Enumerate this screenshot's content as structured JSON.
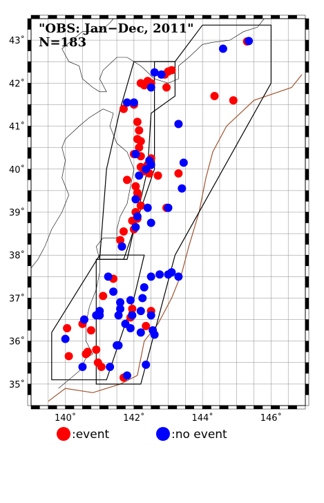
{
  "title": {
    "line1": "\"OBS: Jan−Dec, 2011\"",
    "line2": "N=183"
  },
  "axes": {
    "lon_range": [
      139,
      147
    ],
    "lat_range": [
      34.5,
      43.5
    ],
    "x_ticks": [
      {
        "value": 140,
        "label": "140˚"
      },
      {
        "value": 142,
        "label": "142˚"
      },
      {
        "value": 144,
        "label": "144˚"
      },
      {
        "value": 146,
        "label": "146˚"
      }
    ],
    "y_ticks": [
      {
        "value": 35,
        "label": "35˚"
      },
      {
        "value": 36,
        "label": "36˚"
      },
      {
        "value": 37,
        "label": "37˚"
      },
      {
        "value": 38,
        "label": "38˚"
      },
      {
        "value": 39,
        "label": "39˚"
      },
      {
        "value": 40,
        "label": "40˚"
      },
      {
        "value": 41,
        "label": "41˚"
      },
      {
        "value": 42,
        "label": "42˚"
      },
      {
        "value": 43,
        "label": "43˚"
      }
    ],
    "grid": true,
    "grid_step_deg": 0.5
  },
  "legend": {
    "event": {
      "label": ":event",
      "color": "#ff0000"
    },
    "no_event": {
      "label": ":no event",
      "color": "#0000ff"
    }
  },
  "colors": {
    "event": "#ff0000",
    "no_event": "#0000ff",
    "coastline": "#000000",
    "trench": "#a0522d",
    "grid": "#888888"
  },
  "regions": [
    [
      [
        144.0,
        43.35
      ],
      [
        146.0,
        43.35
      ],
      [
        146.0,
        42.0
      ],
      [
        145.3,
        41.0
      ],
      [
        143.2,
        38.0
      ],
      [
        142.2,
        35.0
      ],
      [
        140.9,
        35.0
      ],
      [
        140.9,
        37.9
      ],
      [
        141.7,
        37.9
      ],
      [
        142.6,
        40.0
      ],
      [
        142.6,
        42.5
      ],
      [
        143.2,
        42.5
      ],
      [
        144.0,
        43.35
      ]
    ],
    [
      [
        142.0,
        42.5
      ],
      [
        143.2,
        42.5
      ],
      [
        143.2,
        41.7
      ],
      [
        142.5,
        41.3
      ],
      [
        142.4,
        40.0
      ],
      [
        141.8,
        37.9
      ],
      [
        141.0,
        37.9
      ],
      [
        141.2,
        40.0
      ],
      [
        141.6,
        41.4
      ],
      [
        142.0,
        42.5
      ]
    ],
    [
      [
        139.6,
        36.2
      ],
      [
        141.0,
        38.0
      ],
      [
        142.3,
        38.0
      ],
      [
        142.0,
        37.0
      ],
      [
        141.2,
        35.1
      ],
      [
        139.6,
        35.1
      ],
      [
        139.6,
        36.2
      ]
    ]
  ],
  "coastline": [
    [
      [
        139.8,
        34.9
      ],
      [
        140.1,
        35.1
      ],
      [
        140.4,
        35.3
      ],
      [
        140.6,
        35.6
      ],
      [
        140.8,
        35.7
      ],
      [
        140.6,
        36.0
      ],
      [
        140.6,
        36.4
      ],
      [
        140.7,
        36.8
      ],
      [
        140.9,
        37.2
      ],
      [
        141.0,
        37.6
      ],
      [
        141.0,
        37.9
      ],
      [
        140.9,
        38.2
      ],
      [
        141.1,
        38.4
      ],
      [
        141.5,
        38.4
      ],
      [
        141.5,
        38.6
      ],
      [
        141.6,
        38.9
      ],
      [
        141.8,
        39.2
      ],
      [
        141.9,
        39.6
      ],
      [
        142.0,
        40.0
      ],
      [
        141.8,
        40.4
      ],
      [
        141.5,
        40.6
      ],
      [
        141.3,
        41.0
      ],
      [
        141.4,
        41.3
      ],
      [
        141.1,
        41.4
      ],
      [
        140.7,
        41.2
      ],
      [
        140.4,
        41.0
      ],
      [
        140.0,
        40.7
      ],
      [
        139.9,
        40.5
      ],
      [
        140.0,
        40.2
      ],
      [
        139.9,
        39.8
      ],
      [
        140.1,
        39.4
      ],
      [
        139.9,
        39.0
      ],
      [
        139.6,
        38.6
      ],
      [
        139.4,
        38.2
      ],
      [
        139.2,
        37.9
      ],
      [
        139.0,
        37.7
      ]
    ],
    [
      [
        140.1,
        42.5
      ],
      [
        140.4,
        42.4
      ],
      [
        140.5,
        42.1
      ],
      [
        140.8,
        41.9
      ],
      [
        141.0,
        41.8
      ],
      [
        141.2,
        41.8
      ],
      [
        141.0,
        42.1
      ],
      [
        141.1,
        42.3
      ],
      [
        141.5,
        42.6
      ],
      [
        141.8,
        42.6
      ],
      [
        142.2,
        42.4
      ],
      [
        142.6,
        42.1
      ],
      [
        143.0,
        42.0
      ],
      [
        143.3,
        42.1
      ],
      [
        143.3,
        42.4
      ],
      [
        143.6,
        42.6
      ],
      [
        144.0,
        42.9
      ],
      [
        144.3,
        42.95
      ],
      [
        144.8,
        43.0
      ],
      [
        145.2,
        43.2
      ],
      [
        145.6,
        43.3
      ],
      [
        145.8,
        43.5
      ]
    ],
    [
      [
        140.1,
        42.5
      ],
      [
        139.9,
        42.8
      ],
      [
        140.2,
        43.0
      ],
      [
        140.5,
        43.2
      ],
      [
        141.0,
        43.2
      ],
      [
        141.3,
        43.4
      ],
      [
        141.4,
        43.5
      ]
    ]
  ],
  "trench": [
    [
      146.9,
      42.2
    ],
    [
      146.6,
      41.9
    ],
    [
      145.5,
      41.6
    ],
    [
      144.7,
      41.0
    ],
    [
      144.3,
      40.4
    ],
    [
      144.1,
      39.8
    ],
    [
      143.9,
      39.0
    ],
    [
      143.6,
      38.2
    ],
    [
      143.4,
      37.6
    ],
    [
      143.1,
      37.0
    ],
    [
      142.7,
      36.4
    ],
    [
      142.3,
      36.0
    ],
    [
      142.2,
      35.6
    ],
    [
      142.1,
      35.2
    ],
    [
      141.6,
      35.0
    ],
    [
      140.8,
      34.8
    ],
    [
      140.0,
      34.9
    ],
    [
      139.5,
      34.6
    ]
  ],
  "markers": {
    "event": [
      [
        145.3,
        42.97
      ],
      [
        144.9,
        41.6
      ],
      [
        144.35,
        41.7
      ],
      [
        142.9,
        42.2
      ],
      [
        143.0,
        42.27
      ],
      [
        143.1,
        42.3
      ],
      [
        142.5,
        42.0
      ],
      [
        142.4,
        42.05
      ],
      [
        142.3,
        41.95
      ],
      [
        142.2,
        42.0
      ],
      [
        142.0,
        41.5
      ],
      [
        141.7,
        41.4
      ],
      [
        142.1,
        41.1
      ],
      [
        142.15,
        40.9
      ],
      [
        142.1,
        40.7
      ],
      [
        142.2,
        40.65
      ],
      [
        142.15,
        40.5
      ],
      [
        142.0,
        40.35
      ],
      [
        142.2,
        40.3
      ],
      [
        142.5,
        40.25
      ],
      [
        142.4,
        40.1
      ],
      [
        142.2,
        40.05
      ],
      [
        142.3,
        39.95
      ],
      [
        142.45,
        39.9
      ],
      [
        142.7,
        39.85
      ],
      [
        143.3,
        39.9
      ],
      [
        141.8,
        39.75
      ],
      [
        142.05,
        39.6
      ],
      [
        142.1,
        39.45
      ],
      [
        142.1,
        39.35
      ],
      [
        142.2,
        39.15
      ],
      [
        142.05,
        39.0
      ],
      [
        142.1,
        38.85
      ],
      [
        141.95,
        38.8
      ],
      [
        142.0,
        38.6
      ],
      [
        141.7,
        38.55
      ],
      [
        141.6,
        38.35
      ],
      [
        141.65,
        38.2
      ],
      [
        142.95,
        39.1
      ],
      [
        143.3,
        41.05
      ],
      [
        142.95,
        41.9
      ],
      [
        141.4,
        37.45
      ],
      [
        141.1,
        37.05
      ],
      [
        141.95,
        36.75
      ],
      [
        142.5,
        36.7
      ],
      [
        142.35,
        36.35
      ],
      [
        141.9,
        36.55
      ],
      [
        140.05,
        36.3
      ],
      [
        140.55,
        36.5
      ],
      [
        140.5,
        36.4
      ],
      [
        140.75,
        36.25
      ],
      [
        140.9,
        35.8
      ],
      [
        140.6,
        35.7
      ],
      [
        140.65,
        35.75
      ],
      [
        140.1,
        35.65
      ],
      [
        140.95,
        35.5
      ],
      [
        141.05,
        35.4
      ],
      [
        141.7,
        35.15
      ]
    ],
    "no_event": [
      [
        145.35,
        42.98
      ],
      [
        144.6,
        42.8
      ],
      [
        142.6,
        42.25
      ],
      [
        142.8,
        42.2
      ],
      [
        142.5,
        41.9
      ],
      [
        141.8,
        41.55
      ],
      [
        142.0,
        41.55
      ],
      [
        143.3,
        41.05
      ],
      [
        142.05,
        40.35
      ],
      [
        142.45,
        40.2
      ],
      [
        142.5,
        40.1
      ],
      [
        142.35,
        40.0
      ],
      [
        142.15,
        39.85
      ],
      [
        143.45,
        40.15
      ],
      [
        143.4,
        39.55
      ],
      [
        142.05,
        39.3
      ],
      [
        142.4,
        39.1
      ],
      [
        142.1,
        38.9
      ],
      [
        143.0,
        39.1
      ],
      [
        142.5,
        38.75
      ],
      [
        142.05,
        38.65
      ],
      [
        141.65,
        38.2
      ],
      [
        141.25,
        37.5
      ],
      [
        141.4,
        37.15
      ],
      [
        141.9,
        36.95
      ],
      [
        141.6,
        36.9
      ],
      [
        142.3,
        37.25
      ],
      [
        142.25,
        37.0
      ],
      [
        142.75,
        37.55
      ],
      [
        143.0,
        37.55
      ],
      [
        143.1,
        37.6
      ],
      [
        143.3,
        37.5
      ],
      [
        142.5,
        37.5
      ],
      [
        142.5,
        36.6
      ],
      [
        142.2,
        36.7
      ],
      [
        141.95,
        36.6
      ],
      [
        141.6,
        36.75
      ],
      [
        141.55,
        36.6
      ],
      [
        140.55,
        36.5
      ],
      [
        140.9,
        36.6
      ],
      [
        141.0,
        36.7
      ],
      [
        141.0,
        36.6
      ],
      [
        142.55,
        36.25
      ],
      [
        142.6,
        36.15
      ],
      [
        141.75,
        36.4
      ],
      [
        141.9,
        36.3
      ],
      [
        142.2,
        36.2
      ],
      [
        141.55,
        35.9
      ],
      [
        141.5,
        35.9
      ],
      [
        140.0,
        36.05
      ],
      [
        141.3,
        35.4
      ],
      [
        140.5,
        35.4
      ],
      [
        142.35,
        35.45
      ],
      [
        141.8,
        35.2
      ]
    ]
  }
}
